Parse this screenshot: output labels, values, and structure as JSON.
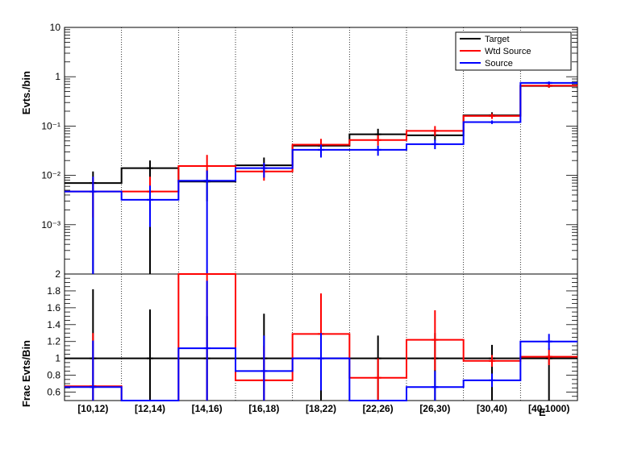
{
  "chart_data": [
    {
      "type": "line",
      "panel": "top",
      "scale": "log",
      "ylabel": "Evts./bin",
      "ylim": [
        0.0001,
        10
      ],
      "yticks": [
        {
          "value": 10,
          "label": "10"
        },
        {
          "value": 1,
          "label": "1"
        },
        {
          "value": 0.1,
          "label": "10⁻¹"
        },
        {
          "value": 0.01,
          "label": "10⁻²"
        },
        {
          "value": 0.001,
          "label": "10⁻³"
        }
      ],
      "categories": [
        "[10,12)",
        "[12,14)",
        "[14,16)",
        "[16,18)",
        "[18,22)",
        "[22,26)",
        "[26,30)",
        "[30,40)",
        "[40,1000)"
      ],
      "legend": {
        "position": "top-right",
        "entries": [
          "Target",
          "Wtd Source",
          "Source"
        ]
      },
      "series": [
        {
          "name": "Target",
          "color": "#000000",
          "values": [
            0.007,
            0.014,
            0.0075,
            0.016,
            0.04,
            0.068,
            0.065,
            0.165,
            0.65
          ],
          "err_low": [
            0.0,
            0.0,
            0.003,
            0.012,
            0.03,
            0.05,
            0.05,
            0.14,
            0.6
          ],
          "err_high": [
            0.012,
            0.02,
            0.013,
            0.023,
            0.052,
            0.088,
            0.084,
            0.19,
            0.7
          ]
        },
        {
          "name": "Wtd Source",
          "color": "#ff0000",
          "values": [
            0.0047,
            0.0047,
            0.0155,
            0.012,
            0.042,
            0.052,
            0.08,
            0.16,
            0.66
          ],
          "err_low": [
            0.0014,
            0.0026,
            0.009,
            0.0078,
            0.031,
            0.04,
            0.063,
            0.14,
            0.6
          ],
          "err_high": [
            0.009,
            0.0094,
            0.026,
            0.017,
            0.055,
            0.065,
            0.1,
            0.18,
            0.72
          ]
        },
        {
          "name": "Source",
          "color": "#0000ff",
          "values": [
            0.0047,
            0.0032,
            0.0078,
            0.014,
            0.033,
            0.033,
            0.043,
            0.12,
            0.75
          ],
          "err_low": [
            0.0,
            0.0009,
            0.0,
            0.009,
            0.023,
            0.025,
            0.034,
            0.11,
            0.7
          ],
          "err_high": [
            0.0094,
            0.0062,
            0.0125,
            0.018,
            0.042,
            0.04,
            0.053,
            0.13,
            0.8
          ]
        }
      ]
    },
    {
      "type": "line",
      "panel": "bottom",
      "ylabel": "Frac Evts/Bin",
      "xlabel": "E",
      "ylim": [
        0.5,
        2.0
      ],
      "yticks": [
        {
          "value": 0.6,
          "label": "0.6"
        },
        {
          "value": 0.8,
          "label": "0.8"
        },
        {
          "value": 1.0,
          "label": "1"
        },
        {
          "value": 1.2,
          "label": "1.2"
        },
        {
          "value": 1.4,
          "label": "1.4"
        },
        {
          "value": 1.6,
          "label": "1.6"
        },
        {
          "value": 1.8,
          "label": "1.8"
        },
        {
          "value": 2.0,
          "label": "2"
        }
      ],
      "categories": [
        "[10,12)",
        "[12,14)",
        "[14,16)",
        "[16,18)",
        "[18,22)",
        "[22,26)",
        "[26,30)",
        "[30,40)",
        "[40,1000)"
      ],
      "series": [
        {
          "name": "Target",
          "color": "#000000",
          "values": [
            1,
            1,
            1,
            1,
            1,
            1,
            1,
            1,
            1
          ],
          "err_low": [
            0.5,
            0.5,
            0.5,
            0.5,
            0.5,
            0.5,
            0.5,
            0.5,
            0.5
          ],
          "err_high": [
            1.82,
            1.58,
            1.5,
            1.53,
            1.5,
            1.27,
            1.3,
            1.16,
            1.04
          ]
        },
        {
          "name": "Wtd Source",
          "color": "#ff0000",
          "values": [
            0.67,
            0.5,
            2.0,
            0.74,
            1.29,
            0.77,
            1.22,
            0.97,
            1.02
          ],
          "err_low": [
            0.5,
            0.5,
            0.5,
            0.5,
            0.8,
            0.5,
            0.86,
            0.9,
            0.92
          ],
          "err_high": [
            1.3,
            0.5,
            2.0,
            1.15,
            1.77,
            1.0,
            1.57,
            1.04,
            1.12
          ]
        },
        {
          "name": "Source",
          "color": "#0000ff",
          "values": [
            0.66,
            0.5,
            1.12,
            0.85,
            1.0,
            0.5,
            0.66,
            0.74,
            1.2
          ],
          "err_low": [
            0.5,
            0.5,
            0.5,
            0.5,
            0.62,
            0.5,
            0.5,
            0.66,
            1.1
          ],
          "err_high": [
            1.21,
            0.5,
            1.92,
            1.27,
            1.3,
            0.5,
            0.85,
            0.82,
            1.29
          ]
        }
      ]
    }
  ]
}
